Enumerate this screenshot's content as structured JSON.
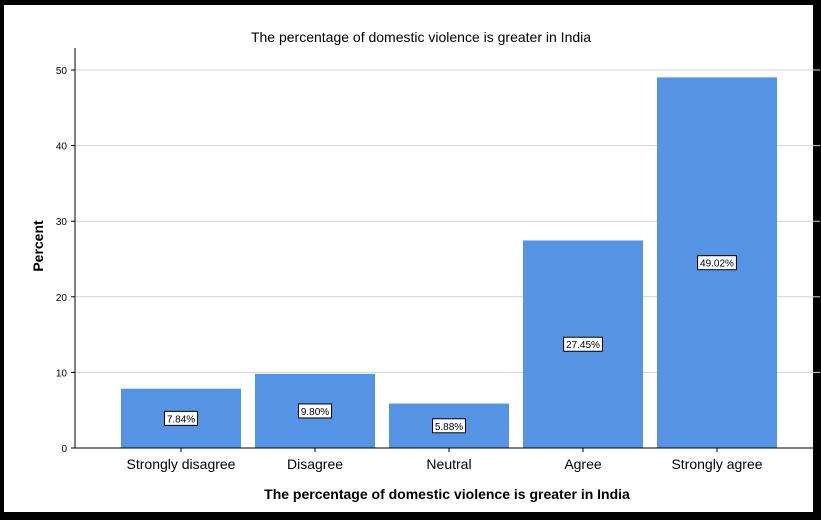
{
  "chart_data": {
    "type": "bar",
    "title": "The percentage of domestic violence is greater in India",
    "xlabel": "The percentage of domestic violence is greater in India",
    "ylabel": "Percent",
    "categories": [
      "Strongly disagree",
      "Disagree",
      "Neutral",
      "Agree",
      "Strongly agree"
    ],
    "values": [
      7.84,
      9.8,
      5.88,
      27.45,
      49.02
    ],
    "data_labels": [
      "7.84%",
      "9.80%",
      "5.88%",
      "27.45%",
      "49.02%"
    ],
    "ylim": [
      0,
      50
    ],
    "yticks": [
      0,
      10,
      20,
      30,
      40,
      50
    ],
    "grid": true,
    "legend": "none",
    "bar_color": "#5594e4"
  }
}
